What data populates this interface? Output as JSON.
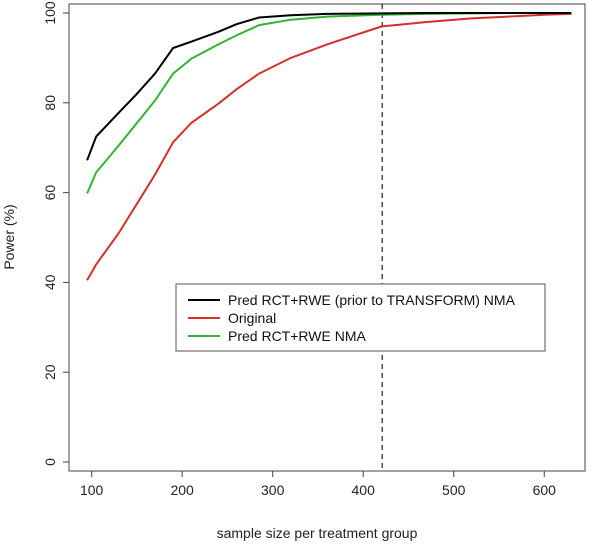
{
  "chart_data": {
    "type": "line",
    "title": "",
    "xlabel": "sample size per treatment group",
    "ylabel": "Power (%)",
    "xlim": [
      75,
      645
    ],
    "ylim": [
      -2,
      102
    ],
    "x_ticks": [
      100,
      200,
      300,
      400,
      500,
      600
    ],
    "y_ticks": [
      0,
      20,
      40,
      60,
      80,
      100
    ],
    "grid": false,
    "legend_position": "center",
    "reference_line": {
      "x": 421,
      "style": "dashed"
    },
    "series": [
      {
        "name": "Pred RCT+RWE (prior to TRANSFORM) NMA",
        "color": "#000000",
        "x": [
          95,
          105,
          130,
          150,
          170,
          190,
          210,
          240,
          260,
          285,
          320,
          360,
          420,
          470,
          520,
          560,
          600,
          630
        ],
        "y": [
          67.2,
          72.5,
          77.8,
          82.0,
          86.5,
          92.2,
          93.6,
          95.8,
          97.5,
          99.0,
          99.5,
          99.8,
          99.9,
          100.0,
          100.0,
          100.0,
          100.0,
          100.0
        ]
      },
      {
        "name": "Original",
        "color": "#d0312d",
        "x": [
          95,
          105,
          130,
          150,
          170,
          190,
          210,
          240,
          260,
          285,
          320,
          360,
          420,
          470,
          520,
          560,
          600,
          630
        ],
        "y": [
          40.5,
          44.0,
          51.0,
          57.5,
          64.0,
          71.2,
          75.5,
          79.8,
          83.0,
          86.5,
          90.0,
          93.0,
          97.0,
          98.0,
          98.8,
          99.2,
          99.6,
          99.8
        ]
      },
      {
        "name": "Pred RCT+RWE NMA",
        "color": "#2fb52f",
        "x": [
          95,
          105,
          130,
          150,
          170,
          190,
          210,
          240,
          260,
          285,
          320,
          360,
          420,
          470,
          520,
          560,
          600,
          630
        ],
        "y": [
          59.8,
          64.5,
          70.5,
          75.5,
          80.5,
          86.5,
          89.8,
          93.0,
          95.0,
          97.3,
          98.5,
          99.2,
          99.6,
          99.8,
          99.9,
          100.0,
          100.0,
          100.0
        ]
      }
    ]
  }
}
